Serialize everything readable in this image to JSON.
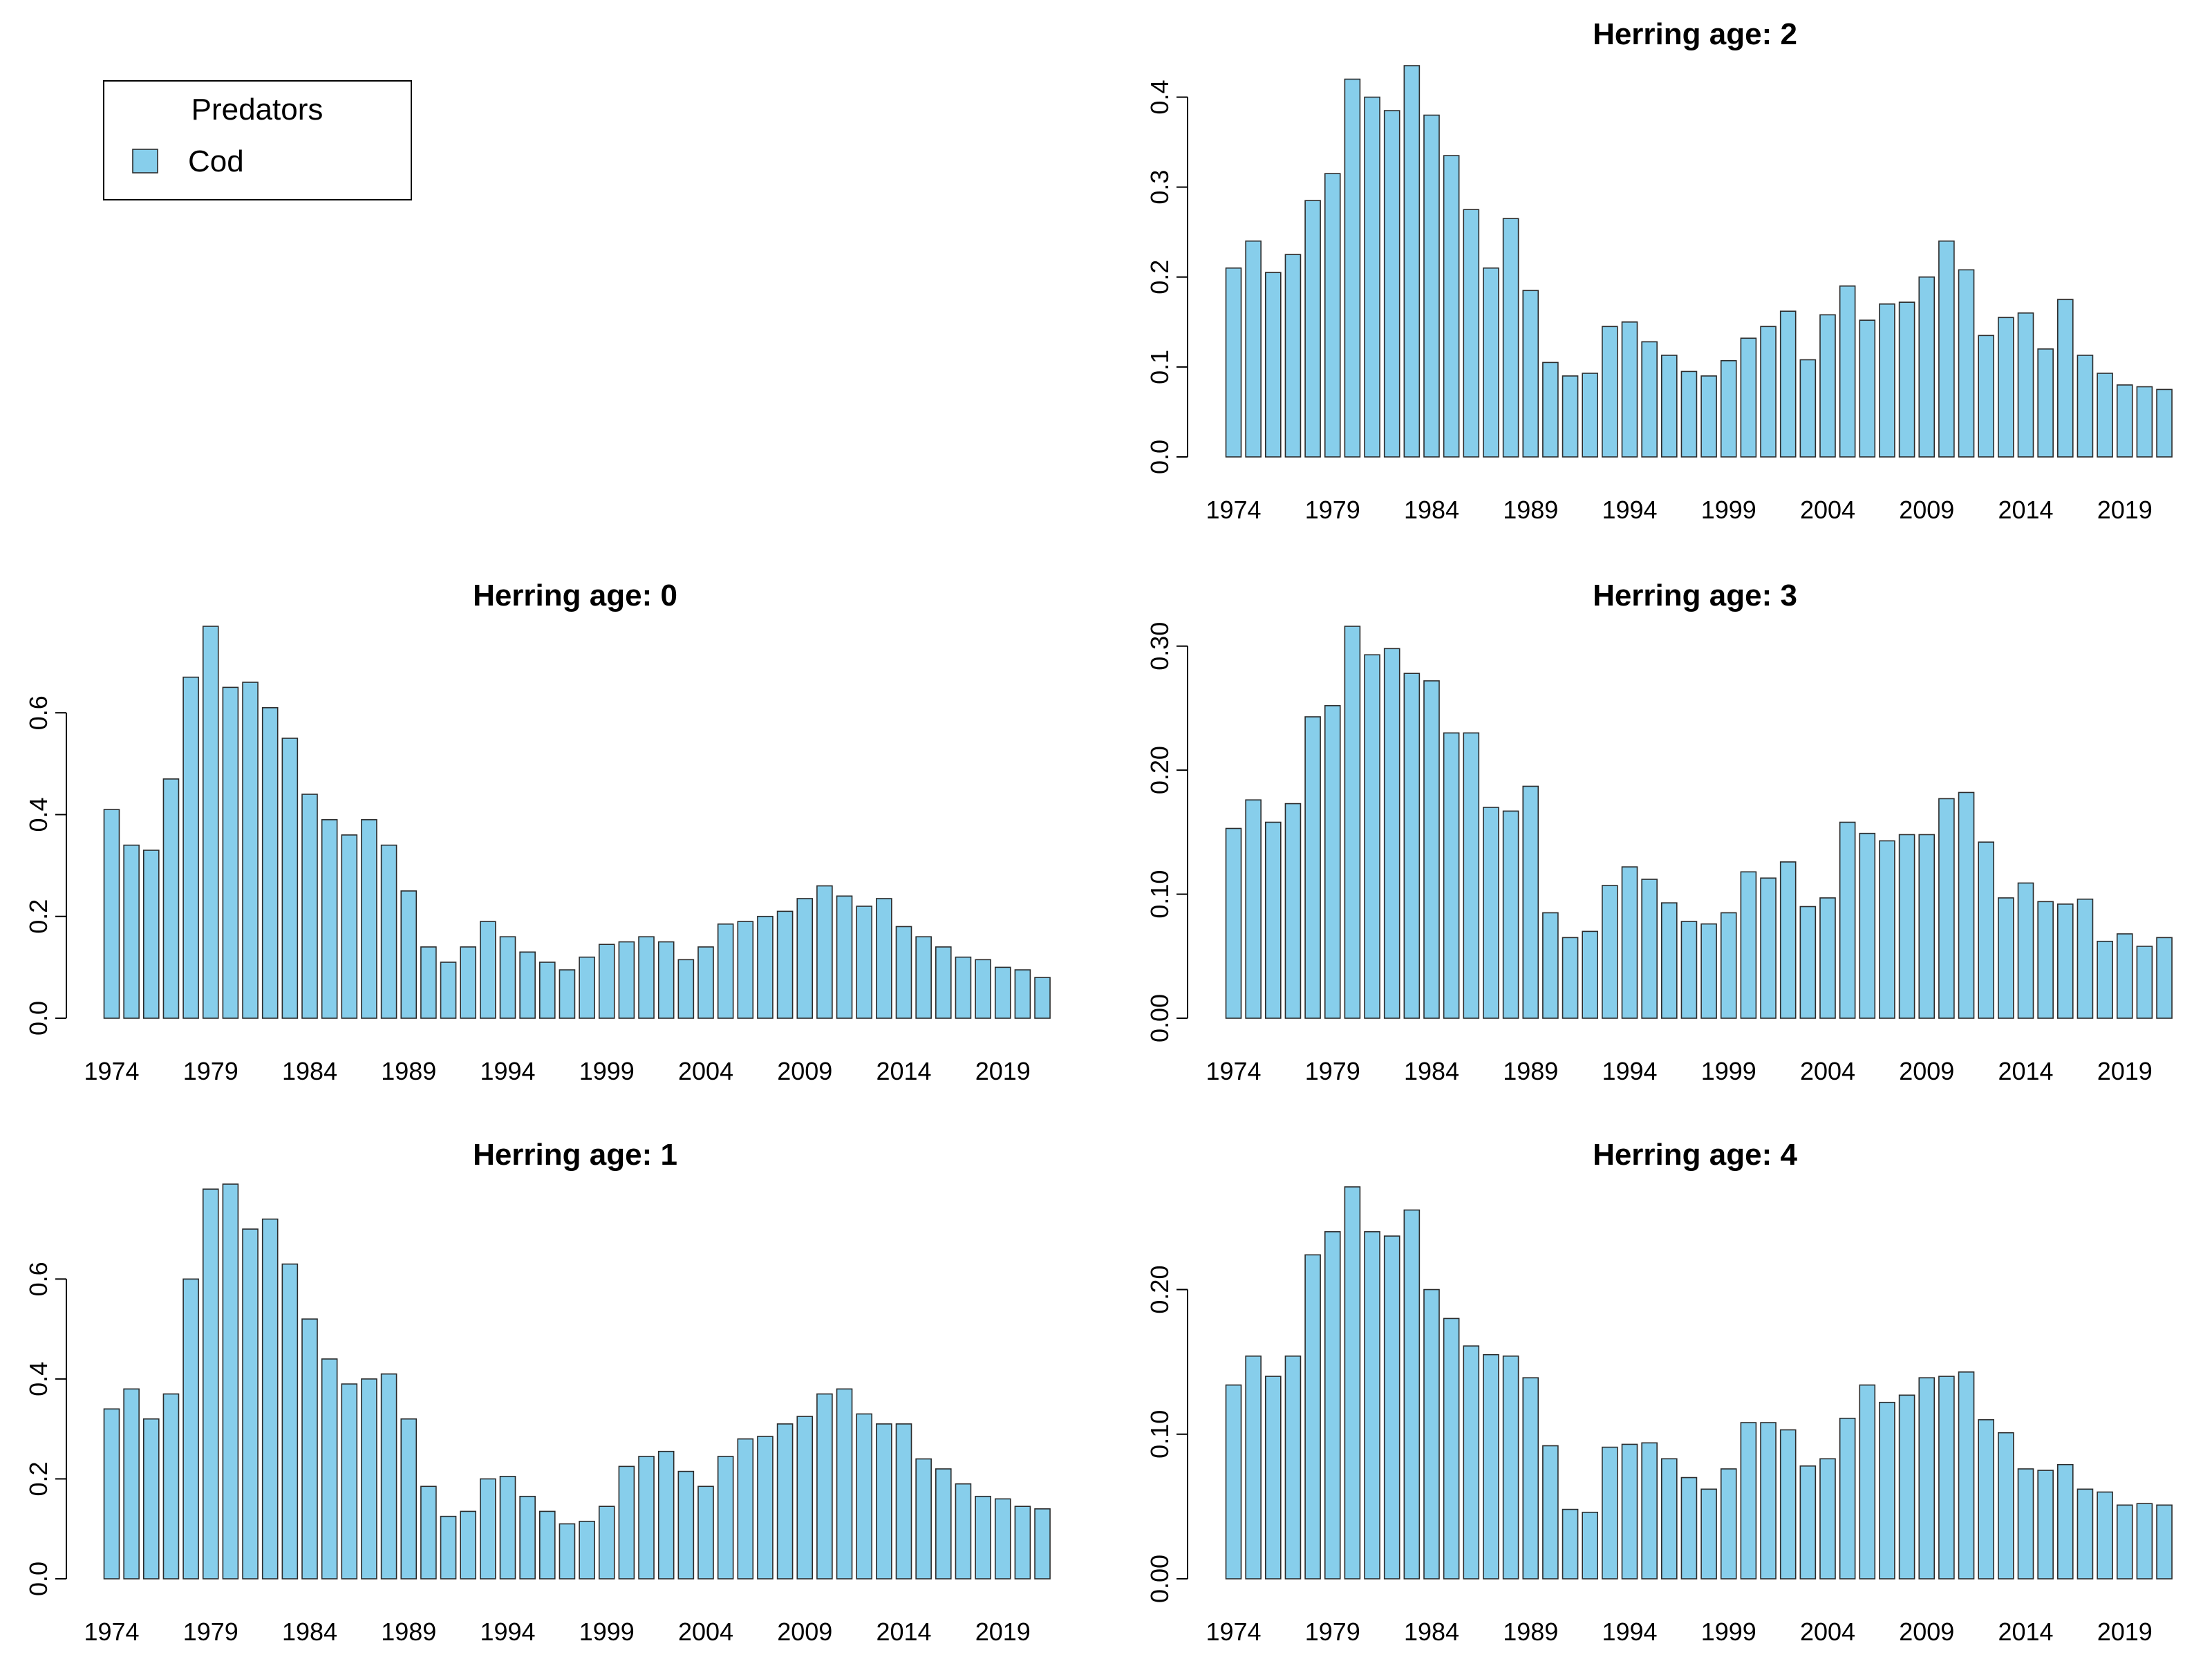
{
  "legend": {
    "title": "Predators",
    "items": [
      {
        "label": "Cod",
        "color": "#87CEEB"
      }
    ]
  },
  "style": {
    "bar_fill": "#87CEEB",
    "bar_border": "#2b2b2b"
  },
  "chart_data": [
    {
      "type": "bar",
      "title": "Herring age: 0",
      "xlabel": "",
      "ylabel": "",
      "categories": [
        1974,
        1975,
        1976,
        1977,
        1978,
        1979,
        1980,
        1981,
        1982,
        1983,
        1984,
        1985,
        1986,
        1987,
        1988,
        1989,
        1990,
        1991,
        1992,
        1993,
        1994,
        1995,
        1996,
        1997,
        1998,
        1999,
        2000,
        2001,
        2002,
        2003,
        2004,
        2005,
        2006,
        2007,
        2008,
        2009,
        2010,
        2011,
        2012,
        2013,
        2014,
        2015,
        2016,
        2017,
        2018,
        2019,
        2020,
        2021
      ],
      "values": [
        0.41,
        0.34,
        0.33,
        0.47,
        0.67,
        0.77,
        0.65,
        0.66,
        0.61,
        0.55,
        0.44,
        0.39,
        0.36,
        0.39,
        0.34,
        0.25,
        0.14,
        0.11,
        0.14,
        0.19,
        0.16,
        0.13,
        0.11,
        0.095,
        0.12,
        0.145,
        0.15,
        0.16,
        0.15,
        0.115,
        0.14,
        0.185,
        0.19,
        0.2,
        0.21,
        0.235,
        0.26,
        0.24,
        0.22,
        0.235,
        0.18,
        0.16,
        0.14,
        0.12,
        0.115,
        0.1,
        0.095,
        0.08
      ],
      "x_tick_labels": [
        "1974",
        "1979",
        "1984",
        "1989",
        "1994",
        "1999",
        "2004",
        "2009",
        "2014",
        "2019"
      ],
      "y_ticks": [
        0.0,
        0.2,
        0.4,
        0.6
      ],
      "y_tick_labels": [
        "0.0",
        "0.2",
        "0.4",
        "0.6"
      ],
      "ylim": [
        0,
        0.77
      ]
    },
    {
      "type": "bar",
      "title": "Herring age: 1",
      "xlabel": "",
      "ylabel": "",
      "categories": [
        1974,
        1975,
        1976,
        1977,
        1978,
        1979,
        1980,
        1981,
        1982,
        1983,
        1984,
        1985,
        1986,
        1987,
        1988,
        1989,
        1990,
        1991,
        1992,
        1993,
        1994,
        1995,
        1996,
        1997,
        1998,
        1999,
        2000,
        2001,
        2002,
        2003,
        2004,
        2005,
        2006,
        2007,
        2008,
        2009,
        2010,
        2011,
        2012,
        2013,
        2014,
        2015,
        2016,
        2017,
        2018,
        2019,
        2020,
        2021
      ],
      "values": [
        0.34,
        0.38,
        0.32,
        0.37,
        0.6,
        0.78,
        0.79,
        0.7,
        0.72,
        0.63,
        0.52,
        0.44,
        0.39,
        0.4,
        0.41,
        0.32,
        0.185,
        0.125,
        0.135,
        0.2,
        0.205,
        0.165,
        0.135,
        0.11,
        0.115,
        0.145,
        0.225,
        0.245,
        0.255,
        0.215,
        0.185,
        0.245,
        0.28,
        0.285,
        0.31,
        0.325,
        0.37,
        0.38,
        0.33,
        0.31,
        0.31,
        0.24,
        0.22,
        0.19,
        0.165,
        0.16,
        0.145,
        0.14
      ],
      "x_tick_labels": [
        "1974",
        "1979",
        "1984",
        "1989",
        "1994",
        "1999",
        "2004",
        "2009",
        "2014",
        "2019"
      ],
      "y_ticks": [
        0.0,
        0.2,
        0.4,
        0.6
      ],
      "y_tick_labels": [
        "0.0",
        "0.2",
        "0.4",
        "0.6"
      ],
      "ylim": [
        0,
        0.79
      ]
    },
    {
      "type": "bar",
      "title": "Herring age: 2",
      "xlabel": "",
      "ylabel": "",
      "categories": [
        1974,
        1975,
        1976,
        1977,
        1978,
        1979,
        1980,
        1981,
        1982,
        1983,
        1984,
        1985,
        1986,
        1987,
        1988,
        1989,
        1990,
        1991,
        1992,
        1993,
        1994,
        1995,
        1996,
        1997,
        1998,
        1999,
        2000,
        2001,
        2002,
        2003,
        2004,
        2005,
        2006,
        2007,
        2008,
        2009,
        2010,
        2011,
        2012,
        2013,
        2014,
        2015,
        2016,
        2017,
        2018,
        2019,
        2020,
        2021
      ],
      "values": [
        0.21,
        0.24,
        0.205,
        0.225,
        0.285,
        0.315,
        0.42,
        0.4,
        0.385,
        0.435,
        0.38,
        0.335,
        0.275,
        0.21,
        0.265,
        0.185,
        0.105,
        0.09,
        0.093,
        0.145,
        0.15,
        0.128,
        0.113,
        0.095,
        0.09,
        0.107,
        0.132,
        0.145,
        0.162,
        0.108,
        0.158,
        0.19,
        0.152,
        0.17,
        0.172,
        0.2,
        0.24,
        0.208,
        0.135,
        0.155,
        0.16,
        0.12,
        0.175,
        0.113,
        0.093,
        0.08,
        0.078,
        0.075
      ],
      "x_tick_labels": [
        "1974",
        "1979",
        "1984",
        "1989",
        "1994",
        "1999",
        "2004",
        "2009",
        "2014",
        "2019"
      ],
      "y_ticks": [
        0.0,
        0.1,
        0.2,
        0.3,
        0.4
      ],
      "y_tick_labels": [
        "0.0",
        "0.1",
        "0.2",
        "0.3",
        "0.4"
      ],
      "ylim": [
        0,
        0.435
      ]
    },
    {
      "type": "bar",
      "title": "Herring age: 3",
      "xlabel": "",
      "ylabel": "",
      "categories": [
        1974,
        1975,
        1976,
        1977,
        1978,
        1979,
        1980,
        1981,
        1982,
        1983,
        1984,
        1985,
        1986,
        1987,
        1988,
        1989,
        1990,
        1991,
        1992,
        1993,
        1994,
        1995,
        1996,
        1997,
        1998,
        1999,
        2000,
        2001,
        2002,
        2003,
        2004,
        2005,
        2006,
        2007,
        2008,
        2009,
        2010,
        2011,
        2012,
        2013,
        2014,
        2015,
        2016,
        2017,
        2018,
        2019,
        2020,
        2021
      ],
      "values": [
        0.153,
        0.176,
        0.158,
        0.173,
        0.243,
        0.252,
        0.316,
        0.293,
        0.298,
        0.278,
        0.272,
        0.23,
        0.23,
        0.17,
        0.167,
        0.187,
        0.085,
        0.065,
        0.07,
        0.107,
        0.122,
        0.112,
        0.093,
        0.078,
        0.076,
        0.085,
        0.118,
        0.113,
        0.126,
        0.09,
        0.097,
        0.158,
        0.149,
        0.143,
        0.148,
        0.148,
        0.177,
        0.182,
        0.142,
        0.097,
        0.109,
        0.094,
        0.092,
        0.096,
        0.062,
        0.068,
        0.058,
        0.065
      ],
      "x_tick_labels": [
        "1974",
        "1979",
        "1984",
        "1989",
        "1994",
        "1999",
        "2004",
        "2009",
        "2014",
        "2019"
      ],
      "y_ticks": [
        0.0,
        0.1,
        0.2,
        0.3
      ],
      "y_tick_labels": [
        "0.00",
        "0.10",
        "0.20",
        "0.30"
      ],
      "ylim": [
        0,
        0.316
      ]
    },
    {
      "type": "bar",
      "title": "Herring age: 4",
      "xlabel": "",
      "ylabel": "",
      "categories": [
        1974,
        1975,
        1976,
        1977,
        1978,
        1979,
        1980,
        1981,
        1982,
        1983,
        1984,
        1985,
        1986,
        1987,
        1988,
        1989,
        1990,
        1991,
        1992,
        1993,
        1994,
        1995,
        1996,
        1997,
        1998,
        1999,
        2000,
        2001,
        2002,
        2003,
        2004,
        2005,
        2006,
        2007,
        2008,
        2009,
        2010,
        2011,
        2012,
        2013,
        2014,
        2015,
        2016,
        2017,
        2018,
        2019,
        2020,
        2021
      ],
      "values": [
        0.134,
        0.154,
        0.14,
        0.154,
        0.224,
        0.24,
        0.271,
        0.24,
        0.237,
        0.255,
        0.2,
        0.18,
        0.161,
        0.155,
        0.154,
        0.139,
        0.092,
        0.048,
        0.046,
        0.091,
        0.093,
        0.094,
        0.083,
        0.07,
        0.062,
        0.076,
        0.108,
        0.108,
        0.103,
        0.078,
        0.083,
        0.111,
        0.134,
        0.122,
        0.127,
        0.139,
        0.14,
        0.143,
        0.11,
        0.101,
        0.076,
        0.075,
        0.079,
        0.062,
        0.06,
        0.051,
        0.052,
        0.051
      ],
      "x_tick_labels": [
        "1974",
        "1979",
        "1984",
        "1989",
        "1994",
        "1999",
        "2004",
        "2009",
        "2014",
        "2019"
      ],
      "y_ticks": [
        0.0,
        0.1,
        0.2
      ],
      "y_tick_labels": [
        "0.00",
        "0.10",
        "0.20"
      ],
      "ylim": [
        0,
        0.271
      ]
    }
  ]
}
